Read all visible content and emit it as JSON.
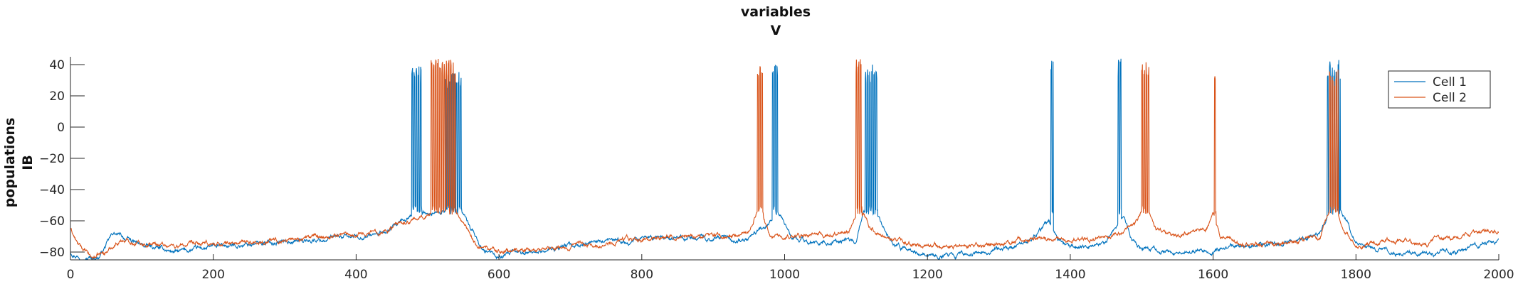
{
  "chart_data": {
    "type": "line",
    "title": [
      "variables",
      "V"
    ],
    "ylabel": [
      "populations",
      "IB"
    ],
    "xlabel": "",
    "xlim": [
      0,
      2000
    ],
    "ylim": [
      -85,
      45
    ],
    "xticks": [
      0,
      200,
      400,
      600,
      800,
      1000,
      1200,
      1400,
      1600,
      1800,
      2000
    ],
    "yticks": [
      -80,
      -60,
      -40,
      -20,
      0,
      20,
      40
    ],
    "grid": false,
    "legend_position": "top-right",
    "series": [
      {
        "name": "Cell 1",
        "color": "#0072BD",
        "baseline": [
          [
            0,
            -80
          ],
          [
            20,
            -84
          ],
          [
            40,
            -83
          ],
          [
            60,
            -68
          ],
          [
            80,
            -72
          ],
          [
            100,
            -76
          ],
          [
            150,
            -80
          ],
          [
            200,
            -77
          ],
          [
            250,
            -75
          ],
          [
            300,
            -73
          ],
          [
            350,
            -72
          ],
          [
            400,
            -70
          ],
          [
            440,
            -68
          ],
          [
            470,
            -60
          ],
          [
            480,
            -55
          ],
          [
            500,
            -55
          ],
          [
            520,
            -54
          ],
          [
            550,
            -55
          ],
          [
            560,
            -65
          ],
          [
            580,
            -80
          ],
          [
            600,
            -83
          ],
          [
            650,
            -80
          ],
          [
            700,
            -76
          ],
          [
            750,
            -74
          ],
          [
            800,
            -72
          ],
          [
            850,
            -70
          ],
          [
            900,
            -71
          ],
          [
            950,
            -72
          ],
          [
            975,
            -62
          ],
          [
            990,
            -55
          ],
          [
            1000,
            -62
          ],
          [
            1010,
            -72
          ],
          [
            1050,
            -74
          ],
          [
            1100,
            -72
          ],
          [
            1110,
            -55
          ],
          [
            1130,
            -55
          ],
          [
            1140,
            -65
          ],
          [
            1150,
            -75
          ],
          [
            1200,
            -82
          ],
          [
            1250,
            -82
          ],
          [
            1300,
            -78
          ],
          [
            1340,
            -75
          ],
          [
            1370,
            -60
          ],
          [
            1380,
            -70
          ],
          [
            1400,
            -78
          ],
          [
            1450,
            -74
          ],
          [
            1465,
            -62
          ],
          [
            1475,
            -56
          ],
          [
            1485,
            -70
          ],
          [
            1500,
            -78
          ],
          [
            1550,
            -80
          ],
          [
            1600,
            -78
          ],
          [
            1650,
            -76
          ],
          [
            1700,
            -74
          ],
          [
            1750,
            -68
          ],
          [
            1760,
            -56
          ],
          [
            1780,
            -55
          ],
          [
            1790,
            -62
          ],
          [
            1800,
            -75
          ],
          [
            1850,
            -80
          ],
          [
            1900,
            -82
          ],
          [
            1950,
            -78
          ],
          [
            2000,
            -72
          ]
        ],
        "bursts": [
          [
            478,
            492,
            40
          ],
          [
            525,
            548,
            36
          ],
          [
            983,
            990,
            42
          ],
          [
            1113,
            1130,
            40
          ],
          [
            1373,
            1376,
            43
          ],
          [
            1467,
            1471,
            44
          ],
          [
            1760,
            1778,
            43
          ]
        ]
      },
      {
        "name": "Cell 2",
        "color": "#D95319",
        "baseline": [
          [
            0,
            -65
          ],
          [
            10,
            -75
          ],
          [
            30,
            -84
          ],
          [
            50,
            -80
          ],
          [
            70,
            -72
          ],
          [
            100,
            -74
          ],
          [
            150,
            -76
          ],
          [
            200,
            -75
          ],
          [
            250,
            -74
          ],
          [
            300,
            -72
          ],
          [
            350,
            -70
          ],
          [
            400,
            -68
          ],
          [
            440,
            -66
          ],
          [
            480,
            -60
          ],
          [
            500,
            -56
          ],
          [
            510,
            -55
          ],
          [
            540,
            -55
          ],
          [
            550,
            -62
          ],
          [
            570,
            -76
          ],
          [
            600,
            -80
          ],
          [
            650,
            -78
          ],
          [
            700,
            -76
          ],
          [
            750,
            -74
          ],
          [
            800,
            -72
          ],
          [
            850,
            -70
          ],
          [
            900,
            -70
          ],
          [
            950,
            -68
          ],
          [
            960,
            -55
          ],
          [
            970,
            -58
          ],
          [
            980,
            -70
          ],
          [
            1050,
            -70
          ],
          [
            1090,
            -66
          ],
          [
            1100,
            -56
          ],
          [
            1110,
            -56
          ],
          [
            1120,
            -65
          ],
          [
            1150,
            -72
          ],
          [
            1200,
            -76
          ],
          [
            1250,
            -76
          ],
          [
            1300,
            -74
          ],
          [
            1350,
            -72
          ],
          [
            1400,
            -72
          ],
          [
            1450,
            -70
          ],
          [
            1490,
            -64
          ],
          [
            1500,
            -54
          ],
          [
            1510,
            -56
          ],
          [
            1520,
            -66
          ],
          [
            1550,
            -70
          ],
          [
            1590,
            -66
          ],
          [
            1600,
            -58
          ],
          [
            1610,
            -70
          ],
          [
            1650,
            -76
          ],
          [
            1700,
            -75
          ],
          [
            1750,
            -70
          ],
          [
            1762,
            -56
          ],
          [
            1775,
            -56
          ],
          [
            1785,
            -65
          ],
          [
            1800,
            -76
          ],
          [
            1850,
            -72
          ],
          [
            1900,
            -74
          ],
          [
            1950,
            -70
          ],
          [
            2000,
            -66
          ]
        ],
        "bursts": [
          [
            505,
            540,
            44
          ],
          [
            962,
            970,
            41
          ],
          [
            1100,
            1108,
            44
          ],
          [
            1500,
            1510,
            42
          ],
          [
            1602,
            1604,
            40
          ],
          [
            1763,
            1775,
            37
          ]
        ]
      }
    ]
  }
}
